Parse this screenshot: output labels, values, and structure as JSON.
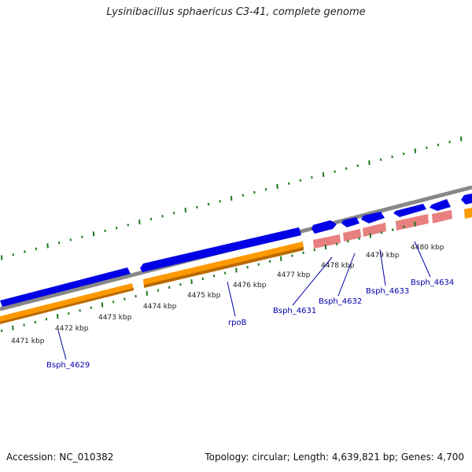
{
  "title": "Lysinibacillus sphaericus C3-41, complete genome",
  "footer": {
    "accession": "Accession: NC_010382",
    "summary": "Topology: circular; Length: 4,639,821 bp; Genes: 4,700"
  },
  "colors": {
    "backbone": "#888888",
    "forward_cds": "#0000e6",
    "reverse_cds": "#ff9900",
    "reverse_rna": "#e88080",
    "ticks": "#1a7a1a",
    "gene_label": "#0000aa",
    "kbp_label": "#222222"
  },
  "kbp_labels": [
    "4471 kbp",
    "4472 kbp",
    "4473 kbp",
    "4474 kbp",
    "4475 kbp",
    "4476 kbp",
    "4477 kbp",
    "4478 kbp",
    "4479 kbp",
    "4480 kbp"
  ],
  "gene_labels": [
    "Bsph_4629",
    "rpoB",
    "Bsph_4631",
    "Bsph_4632",
    "Bsph_4633",
    "Bsph_4634"
  ]
}
